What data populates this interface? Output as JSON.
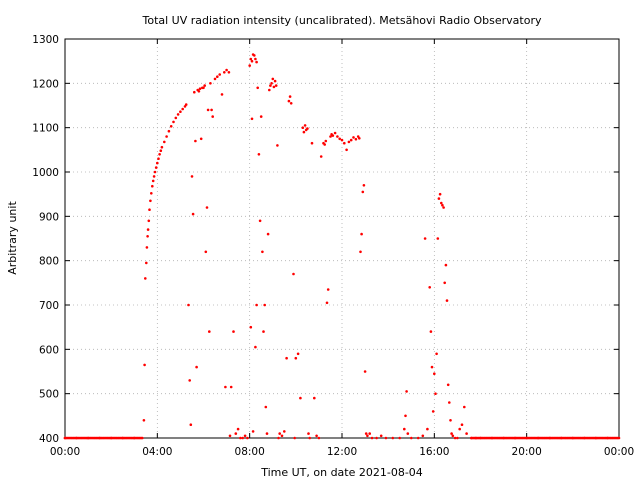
{
  "chart_data": {
    "type": "scatter",
    "title": "Total UV radiation intensity (uncalibrated). Metsähovi Radio Observatory",
    "xlabel": "Time UT, on date 2021-08-04",
    "ylabel": "Arbitrary unit",
    "xlim": [
      0,
      24
    ],
    "ylim": [
      400,
      1300
    ],
    "x_unit": "hours UT",
    "x_ticks": [
      0,
      4,
      8,
      12,
      16,
      20,
      24
    ],
    "x_tick_labels": [
      "00:00",
      "04:00",
      "08:00",
      "12:00",
      "16:00",
      "20:00",
      "00:00"
    ],
    "y_ticks": [
      400,
      500,
      600,
      700,
      800,
      900,
      1000,
      1100,
      1200,
      1300
    ],
    "y_tick_labels": [
      "400",
      "500",
      "600",
      "700",
      "800",
      "900",
      "1000",
      "1100",
      "1200",
      "1300"
    ],
    "grid": true,
    "legend": false,
    "marker_color": "#ff0000",
    "series": [
      {
        "points": [
          [
            0.0,
            400
          ],
          [
            0.5,
            400
          ],
          [
            1.0,
            400
          ],
          [
            1.5,
            400
          ],
          [
            2.0,
            400
          ],
          [
            2.5,
            400
          ],
          [
            3.0,
            400
          ],
          [
            3.35,
            400
          ],
          [
            3.42,
            440
          ],
          [
            3.45,
            565
          ],
          [
            3.48,
            760
          ],
          [
            3.52,
            795
          ],
          [
            3.55,
            830
          ],
          [
            3.58,
            855
          ],
          [
            3.6,
            870
          ],
          [
            3.63,
            890
          ],
          [
            3.66,
            915
          ],
          [
            3.7,
            935
          ],
          [
            3.74,
            952
          ],
          [
            3.78,
            968
          ],
          [
            3.82,
            980
          ],
          [
            3.86,
            990
          ],
          [
            3.9,
            1000
          ],
          [
            3.95,
            1010
          ],
          [
            4.0,
            1020
          ],
          [
            4.05,
            1030
          ],
          [
            4.1,
            1040
          ],
          [
            4.15,
            1048
          ],
          [
            4.2,
            1056
          ],
          [
            4.3,
            1068
          ],
          [
            4.4,
            1080
          ],
          [
            4.5,
            1092
          ],
          [
            4.6,
            1103
          ],
          [
            4.7,
            1113
          ],
          [
            4.8,
            1122
          ],
          [
            4.9,
            1130
          ],
          [
            5.0,
            1136
          ],
          [
            5.1,
            1142
          ],
          [
            5.2,
            1148
          ],
          [
            5.25,
            1152
          ],
          [
            5.35,
            700
          ],
          [
            5.4,
            530
          ],
          [
            5.45,
            430
          ],
          [
            5.5,
            990
          ],
          [
            5.55,
            905
          ],
          [
            5.6,
            1180
          ],
          [
            5.65,
            1070
          ],
          [
            5.7,
            560
          ],
          [
            5.75,
            1185
          ],
          [
            5.8,
            1182
          ],
          [
            5.85,
            1188
          ],
          [
            5.9,
            1075
          ],
          [
            5.95,
            1190
          ],
          [
            6.0,
            1190
          ],
          [
            6.05,
            1195
          ],
          [
            6.1,
            820
          ],
          [
            6.15,
            920
          ],
          [
            6.2,
            1140
          ],
          [
            6.25,
            640
          ],
          [
            6.3,
            1200
          ],
          [
            6.35,
            1140
          ],
          [
            6.4,
            1125
          ],
          [
            6.5,
            1210
          ],
          [
            6.6,
            1215
          ],
          [
            6.7,
            1220
          ],
          [
            6.8,
            1175
          ],
          [
            6.9,
            1225
          ],
          [
            7.0,
            1230
          ],
          [
            7.1,
            1225
          ],
          [
            6.95,
            515
          ],
          [
            7.15,
            405
          ],
          [
            7.2,
            515
          ],
          [
            7.3,
            640
          ],
          [
            7.4,
            410
          ],
          [
            7.5,
            420
          ],
          [
            7.6,
            400
          ],
          [
            7.7,
            400
          ],
          [
            7.8,
            405
          ],
          [
            7.9,
            400
          ],
          [
            8.0,
            1240
          ],
          [
            8.05,
            1255
          ],
          [
            8.1,
            1250
          ],
          [
            8.15,
            1265
          ],
          [
            8.2,
            1263
          ],
          [
            8.25,
            1255
          ],
          [
            8.3,
            1248
          ],
          [
            8.35,
            1190
          ],
          [
            8.1,
            1120
          ],
          [
            8.05,
            650
          ],
          [
            8.15,
            415
          ],
          [
            8.25,
            605
          ],
          [
            8.3,
            700
          ],
          [
            8.4,
            1040
          ],
          [
            8.45,
            890
          ],
          [
            8.5,
            1125
          ],
          [
            8.55,
            820
          ],
          [
            8.6,
            640
          ],
          [
            8.65,
            700
          ],
          [
            8.7,
            470
          ],
          [
            8.75,
            410
          ],
          [
            8.8,
            860
          ],
          [
            8.85,
            1185
          ],
          [
            8.9,
            1195
          ],
          [
            8.95,
            1200
          ],
          [
            9.0,
            1210
          ],
          [
            9.05,
            1192
          ],
          [
            9.1,
            1205
          ],
          [
            9.15,
            1195
          ],
          [
            9.2,
            1060
          ],
          [
            9.25,
            400
          ],
          [
            9.3,
            410
          ],
          [
            9.4,
            405
          ],
          [
            9.5,
            415
          ],
          [
            9.6,
            580
          ],
          [
            9.7,
            1160
          ],
          [
            9.75,
            1170
          ],
          [
            9.8,
            1155
          ],
          [
            9.9,
            770
          ],
          [
            9.95,
            400
          ],
          [
            10.0,
            580
          ],
          [
            10.1,
            590
          ],
          [
            10.2,
            490
          ],
          [
            10.3,
            1100
          ],
          [
            10.35,
            1090
          ],
          [
            10.4,
            1105
          ],
          [
            10.45,
            1095
          ],
          [
            10.5,
            1098
          ],
          [
            10.55,
            410
          ],
          [
            10.6,
            400
          ],
          [
            10.7,
            1065
          ],
          [
            10.8,
            490
          ],
          [
            10.9,
            405
          ],
          [
            11.0,
            400
          ],
          [
            11.1,
            1035
          ],
          [
            11.2,
            1065
          ],
          [
            11.25,
            1062
          ],
          [
            11.3,
            1070
          ],
          [
            11.35,
            705
          ],
          [
            11.4,
            735
          ],
          [
            11.5,
            1080
          ],
          [
            11.55,
            1085
          ],
          [
            11.6,
            1082
          ],
          [
            11.7,
            1088
          ],
          [
            11.8,
            1080
          ],
          [
            11.9,
            1075
          ],
          [
            12.0,
            1072
          ],
          [
            12.1,
            1065
          ],
          [
            12.2,
            1050
          ],
          [
            12.3,
            1068
          ],
          [
            12.4,
            1072
          ],
          [
            12.5,
            1078
          ],
          [
            12.6,
            1074
          ],
          [
            12.7,
            1080
          ],
          [
            12.75,
            1076
          ],
          [
            12.8,
            820
          ],
          [
            12.85,
            860
          ],
          [
            12.9,
            955
          ],
          [
            12.95,
            970
          ],
          [
            13.0,
            550
          ],
          [
            13.05,
            410
          ],
          [
            13.1,
            405
          ],
          [
            13.2,
            410
          ],
          [
            13.3,
            400
          ],
          [
            13.5,
            400
          ],
          [
            13.7,
            405
          ],
          [
            13.9,
            400
          ],
          [
            14.2,
            400
          ],
          [
            14.5,
            400
          ],
          [
            14.7,
            420
          ],
          [
            14.75,
            450
          ],
          [
            14.8,
            505
          ],
          [
            14.85,
            410
          ],
          [
            15.0,
            400
          ],
          [
            15.3,
            400
          ],
          [
            15.5,
            405
          ],
          [
            15.6,
            850
          ],
          [
            15.7,
            420
          ],
          [
            15.8,
            740
          ],
          [
            15.85,
            640
          ],
          [
            15.9,
            560
          ],
          [
            15.95,
            460
          ],
          [
            16.0,
            545
          ],
          [
            16.05,
            500
          ],
          [
            16.1,
            590
          ],
          [
            16.15,
            850
          ],
          [
            16.2,
            940
          ],
          [
            16.25,
            950
          ],
          [
            16.3,
            930
          ],
          [
            16.35,
            925
          ],
          [
            16.4,
            920
          ],
          [
            16.45,
            750
          ],
          [
            16.5,
            790
          ],
          [
            16.55,
            710
          ],
          [
            16.6,
            520
          ],
          [
            16.65,
            480
          ],
          [
            16.7,
            440
          ],
          [
            16.75,
            410
          ],
          [
            16.8,
            405
          ],
          [
            16.9,
            400
          ],
          [
            17.0,
            400
          ],
          [
            17.1,
            420
          ],
          [
            17.2,
            430
          ],
          [
            17.3,
            470
          ],
          [
            17.4,
            410
          ],
          [
            17.6,
            400
          ],
          [
            17.8,
            400
          ],
          [
            18.0,
            400
          ],
          [
            18.5,
            400
          ],
          [
            19.0,
            400
          ],
          [
            19.5,
            400
          ],
          [
            20.0,
            400
          ],
          [
            20.5,
            400
          ],
          [
            21.0,
            400
          ],
          [
            21.5,
            400
          ],
          [
            22.0,
            400
          ],
          [
            22.5,
            400
          ],
          [
            23.0,
            400
          ],
          [
            23.5,
            400
          ],
          [
            24.0,
            400
          ]
        ]
      }
    ]
  }
}
